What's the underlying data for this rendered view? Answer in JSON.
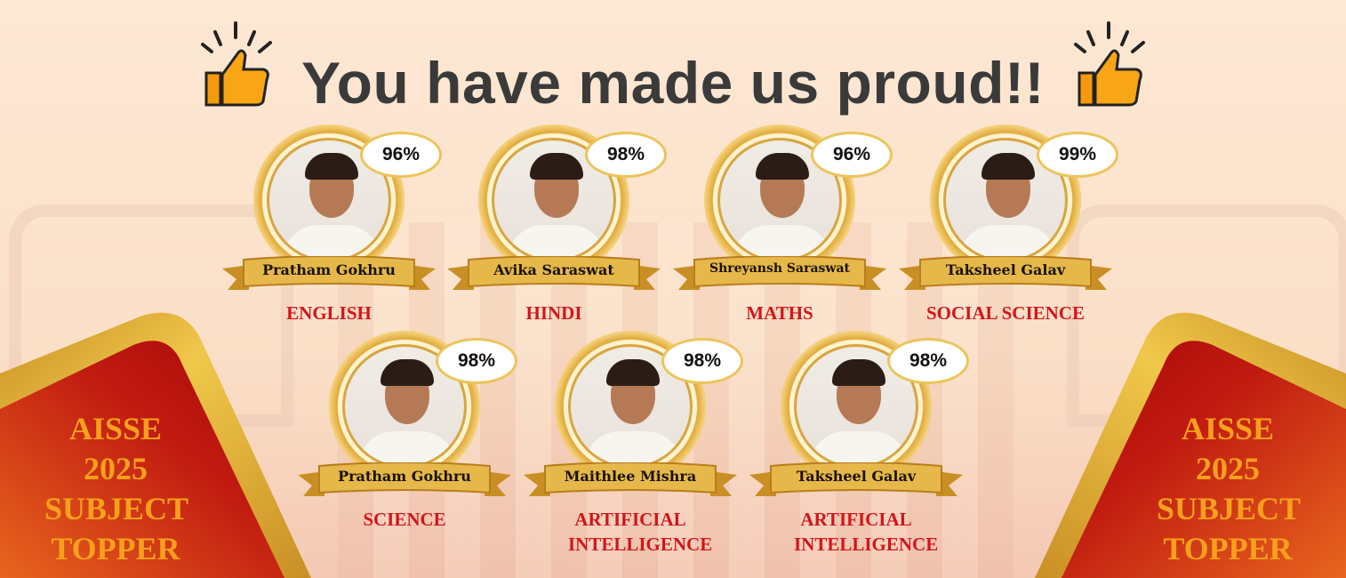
{
  "title": "You have made us proud!!",
  "colors": {
    "accent_red": "#d4141a",
    "gold": "#e0a93a",
    "badge_text": "#f8a01c",
    "title": "#3a3a3a"
  },
  "icons": {
    "left": "thumbs-up-icon",
    "right": "thumbs-up-icon"
  },
  "badge": {
    "line1": "AISSE",
    "line2": "2025",
    "line3": "SUBJECT",
    "line4": "TOPPER"
  },
  "toppers": [
    {
      "name": "Pratham Gokhru",
      "score": "96%",
      "subject": "ENGLISH"
    },
    {
      "name": "Avika Saraswat",
      "score": "98%",
      "subject": "HINDI"
    },
    {
      "name": "Shreyansh Saraswat",
      "score": "96%",
      "subject": "MATHS"
    },
    {
      "name": "Taksheel Galav",
      "score": "99%",
      "subject": "SOCIAL SCIENCE"
    },
    {
      "name": "Pratham Gokhru",
      "score": "98%",
      "subject": "SCIENCE"
    },
    {
      "name": "Maithlee Mishra",
      "score": "98%",
      "subject": "ARTIFICIAL INTELLIGENCE"
    },
    {
      "name": "Taksheel Galav",
      "score": "98%",
      "subject": "ARTIFICIAL INTELLIGENCE"
    }
  ]
}
